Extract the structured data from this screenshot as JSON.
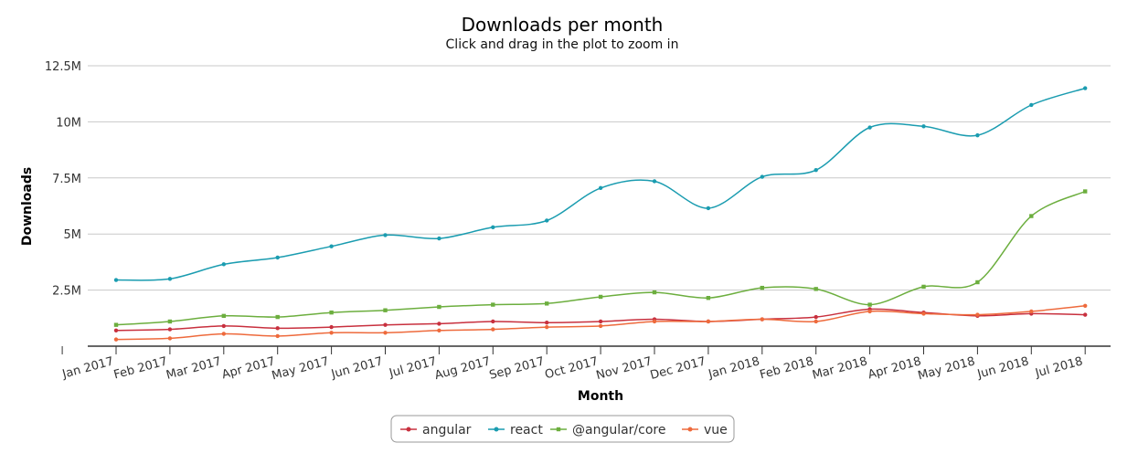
{
  "chart_data": {
    "type": "line",
    "title": "Downloads per month",
    "subtitle": "Click and drag in the plot to zoom in",
    "xlabel": "Month",
    "ylabel": "Downloads",
    "categories": [
      "Jan 2017",
      "Feb 2017",
      "Mar 2017",
      "Apr 2017",
      "May 2017",
      "Jun 2017",
      "Jul 2017",
      "Aug 2017",
      "Sep 2017",
      "Oct 2017",
      "Nov 2017",
      "Dec 2017",
      "Jan 2018",
      "Feb 2018",
      "Mar 2018",
      "Apr 2018",
      "May 2018",
      "Jun 2018",
      "Jul 2018"
    ],
    "ytick_values": [
      2500000,
      5000000,
      7500000,
      10000000,
      12500000
    ],
    "ytick_labels": [
      "2.5M",
      "5M",
      "7.5M",
      "10M",
      "12.5M"
    ],
    "ylim": [
      0,
      12500000
    ],
    "grid": true,
    "legend_position": "bottom-center",
    "series": [
      {
        "name": "angular",
        "color": "#c8303e",
        "values": [
          700000,
          750000,
          900000,
          800000,
          850000,
          950000,
          1000000,
          1100000,
          1050000,
          1100000,
          1200000,
          1100000,
          1200000,
          1300000,
          1650000,
          1500000,
          1350000,
          1450000,
          1400000
        ]
      },
      {
        "name": "react",
        "color": "#1a9cb0",
        "values": [
          2950000,
          3000000,
          3650000,
          3950000,
          4450000,
          4950000,
          4800000,
          5300000,
          5600000,
          7050000,
          7350000,
          6150000,
          7550000,
          7850000,
          9750000,
          9800000,
          9400000,
          10750000,
          11500000
        ]
      },
      {
        "name": "@angular/core",
        "color": "#6cae3e",
        "values": [
          950000,
          1100000,
          1350000,
          1300000,
          1500000,
          1600000,
          1750000,
          1850000,
          1900000,
          2200000,
          2400000,
          2150000,
          2600000,
          2550000,
          1850000,
          2650000,
          2850000,
          5800000,
          6900000
        ]
      },
      {
        "name": "vue",
        "color": "#ee6a3c",
        "values": [
          300000,
          350000,
          550000,
          450000,
          600000,
          600000,
          700000,
          750000,
          850000,
          900000,
          1100000,
          1100000,
          1200000,
          1100000,
          1550000,
          1450000,
          1400000,
          1550000,
          1800000
        ]
      }
    ]
  }
}
